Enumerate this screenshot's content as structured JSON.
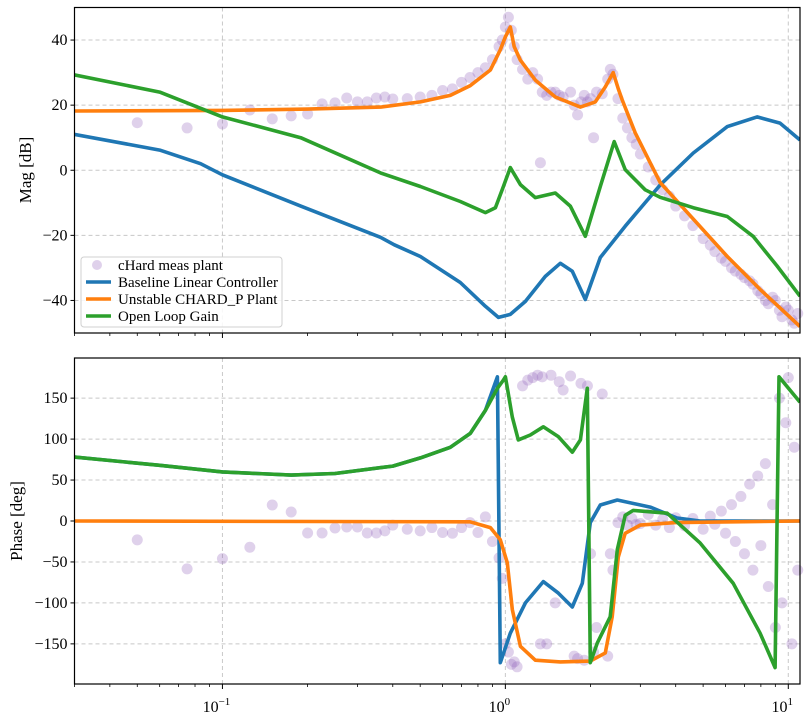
{
  "chart_data": [
    {
      "panel": "magnitude",
      "type": "line",
      "title": "",
      "xlabel": "",
      "ylabel": "Mag [dB]",
      "xscale": "log",
      "xlim": [
        0.03,
        11
      ],
      "ylim": [
        -50,
        50
      ],
      "yticks": [
        -40,
        -20,
        0,
        20,
        40
      ],
      "ytick_labels": [
        "−40",
        "−20",
        "0",
        "20",
        "40"
      ],
      "grid": true,
      "legend": {
        "location": "lower-left",
        "entries": [
          {
            "label": "cHard meas plant",
            "kind": "marker",
            "color": "#9467bd"
          },
          {
            "label": "Baseline Linear Controller",
            "kind": "line",
            "color": "#1f77b4"
          },
          {
            "label": "Unstable CHARD_P Plant",
            "kind": "line",
            "color": "#ff7f0e"
          },
          {
            "label": "Open Loop Gain",
            "kind": "line",
            "color": "#2ca02c"
          }
        ]
      },
      "series": [
        {
          "name": "Baseline Linear Controller",
          "color": "#1f77b4",
          "points": [
            [
              0.03,
              11
            ],
            [
              0.06,
              6.2
            ],
            [
              0.0837,
              2
            ],
            [
              0.1,
              -1.4
            ],
            [
              0.189,
              -11
            ],
            [
              0.362,
              -20.6
            ],
            [
              0.405,
              -22.9
            ],
            [
              0.501,
              -26.5
            ],
            [
              0.693,
              -34.5
            ],
            [
              0.85,
              -41.8
            ],
            [
              0.945,
              -45.2
            ],
            [
              1.041,
              -44.3
            ],
            [
              1.177,
              -40.3
            ],
            [
              1.384,
              -32.6
            ],
            [
              1.564,
              -28.6
            ],
            [
              1.724,
              -31
            ],
            [
              1.917,
              -39.7
            ],
            [
              2.166,
              -26.8
            ],
            [
              2.652,
              -17.2
            ],
            [
              3.526,
              -4.5
            ],
            [
              4.615,
              5.3
            ],
            [
              6.085,
              13.4
            ],
            [
              7.756,
              16.4
            ],
            [
              9.35,
              14.5
            ],
            [
              11,
              9.3
            ]
          ]
        },
        {
          "name": "Unstable CHARD_P Plant",
          "color": "#ff7f0e",
          "points": [
            [
              0.03,
              18.2
            ],
            [
              0.1,
              18.4
            ],
            [
              0.2,
              18.8
            ],
            [
              0.362,
              19.4
            ],
            [
              0.501,
              21
            ],
            [
              0.639,
              23
            ],
            [
              0.752,
              26
            ],
            [
              0.885,
              30.8
            ],
            [
              0.96,
              37
            ],
            [
              1.0,
              41
            ],
            [
              1.041,
              44
            ],
            [
              1.075,
              38
            ],
            [
              1.13,
              33.8
            ],
            [
              1.276,
              27.7
            ],
            [
              1.502,
              22.5
            ],
            [
              1.841,
              19.4
            ],
            [
              2.079,
              21
            ],
            [
              2.256,
              25.6
            ],
            [
              2.405,
              30
            ],
            [
              2.507,
              25
            ],
            [
              2.589,
              21.6
            ],
            [
              2.877,
              11.5
            ],
            [
              3.25,
              2.3
            ],
            [
              3.526,
              -3.8
            ],
            [
              4.615,
              -15
            ],
            [
              6.085,
              -26.5
            ],
            [
              7.95,
              -36.6
            ],
            [
              11,
              -48
            ]
          ]
        },
        {
          "name": "Open Loop Gain",
          "color": "#2ca02c",
          "points": [
            [
              0.03,
              29.3
            ],
            [
              0.06,
              24
            ],
            [
              0.1,
              16.4
            ],
            [
              0.189,
              10
            ],
            [
              0.362,
              -0.8
            ],
            [
              0.501,
              -5
            ],
            [
              0.693,
              -9.6
            ],
            [
              0.85,
              -13
            ],
            [
              0.922,
              -11.5
            ],
            [
              0.984,
              -5
            ],
            [
              1.041,
              0.8
            ],
            [
              1.13,
              -4.4
            ],
            [
              1.276,
              -8.4
            ],
            [
              1.502,
              -7
            ],
            [
              1.697,
              -11
            ],
            [
              1.917,
              -20.3
            ],
            [
              2.166,
              -5
            ],
            [
              2.425,
              8.8
            ],
            [
              2.652,
              0.2
            ],
            [
              3.121,
              -6
            ],
            [
              3.526,
              -8.3
            ],
            [
              4.615,
              -11.5
            ],
            [
              6.085,
              -14.2
            ],
            [
              7.508,
              -20.3
            ],
            [
              9.12,
              -29.4
            ],
            [
              11,
              -38.7
            ]
          ]
        }
      ]
    },
    {
      "panel": "phase",
      "type": "line",
      "title": "",
      "xlabel": "",
      "ylabel": "Phase [deg]",
      "xscale": "log",
      "xlim": [
        0.03,
        11
      ],
      "ylim": [
        -199,
        199
      ],
      "yticks": [
        -150,
        -100,
        -50,
        0,
        50,
        100,
        150
      ],
      "ytick_labels": [
        "−150",
        "−100",
        "−50",
        "0",
        "50",
        "100",
        "150"
      ],
      "grid": true,
      "series": [
        {
          "name": "Baseline Linear Controller",
          "color": "#1f77b4",
          "points": [
            [
              0.03,
              78
            ],
            [
              0.06,
              68
            ],
            [
              0.1,
              60
            ],
            [
              0.175,
              56
            ],
            [
              0.25,
              58
            ],
            [
              0.4,
              67
            ],
            [
              0.501,
              77
            ],
            [
              0.639,
              90
            ],
            [
              0.752,
              107
            ],
            [
              0.85,
              135
            ],
            [
              0.937,
              176
            ],
            [
              0.96,
              -173
            ],
            [
              1.041,
              -137
            ],
            [
              1.177,
              -100
            ],
            [
              1.362,
              -74
            ],
            [
              1.539,
              -88
            ],
            [
              1.724,
              -105
            ],
            [
              1.87,
              -76
            ],
            [
              1.996,
              -2
            ],
            [
              2.166,
              19.5
            ],
            [
              2.486,
              25.6
            ],
            [
              3.25,
              17
            ],
            [
              4.047,
              3.7
            ],
            [
              4.884,
              0
            ],
            [
              11,
              0
            ]
          ]
        },
        {
          "name": "Unstable CHARD_P Plant",
          "color": "#ff7f0e",
          "points": [
            [
              0.03,
              0
            ],
            [
              0.75,
              -1
            ],
            [
              0.885,
              -8
            ],
            [
              0.96,
              -23
            ],
            [
              1.016,
              -51
            ],
            [
              1.058,
              -108
            ],
            [
              1.13,
              -153
            ],
            [
              1.276,
              -170
            ],
            [
              1.564,
              -172
            ],
            [
              1.996,
              -171
            ],
            [
              2.256,
              -161
            ],
            [
              2.386,
              -117
            ],
            [
              2.507,
              -44
            ],
            [
              2.652,
              -15
            ],
            [
              2.996,
              -5
            ],
            [
              4,
              -2
            ],
            [
              11,
              0
            ]
          ]
        },
        {
          "name": "Open Loop Gain",
          "color": "#2ca02c",
          "points": [
            [
              0.03,
              78
            ],
            [
              0.06,
              68
            ],
            [
              0.1,
              60
            ],
            [
              0.175,
              56
            ],
            [
              0.25,
              58
            ],
            [
              0.4,
              67
            ],
            [
              0.501,
              77
            ],
            [
              0.639,
              90
            ],
            [
              0.752,
              107
            ],
            [
              0.85,
              135
            ],
            [
              0.937,
              162
            ],
            [
              0.984,
              172
            ],
            [
              1.0,
              176
            ],
            [
              1.058,
              127
            ],
            [
              1.111,
              99
            ],
            [
              1.225,
              105
            ],
            [
              1.362,
              115
            ],
            [
              1.539,
              103
            ],
            [
              1.724,
              84
            ],
            [
              1.841,
              99
            ],
            [
              1.948,
              162
            ],
            [
              1.996,
              -173
            ],
            [
              2.113,
              -149
            ],
            [
              2.348,
              -117
            ],
            [
              2.486,
              -35
            ],
            [
              2.652,
              7
            ],
            [
              2.831,
              13
            ],
            [
              3.734,
              9.5
            ],
            [
              4.884,
              -27
            ],
            [
              6.387,
              -76
            ],
            [
              7.95,
              -137
            ],
            [
              8.98,
              -179
            ],
            [
              9.27,
              176
            ],
            [
              11,
              145
            ]
          ]
        }
      ]
    }
  ],
  "scatter": {
    "name": "cHard meas plant",
    "color": "#9467bd",
    "points_freq_mag_phase": [
      [
        0.05,
        14.6,
        -23
      ],
      [
        0.075,
        13,
        -58.5
      ],
      [
        0.1,
        14.2,
        -46
      ],
      [
        0.125,
        18.5,
        -32
      ],
      [
        0.15,
        15.8,
        19.5
      ],
      [
        0.175,
        16.7,
        11
      ],
      [
        0.2,
        17.3,
        -14.6
      ],
      [
        0.225,
        20.4,
        -14.6
      ],
      [
        0.25,
        20.7,
        -8.5
      ],
      [
        0.275,
        22.2,
        -7.3
      ],
      [
        0.3,
        21,
        -7.3
      ],
      [
        0.325,
        21,
        -14.6
      ],
      [
        0.35,
        22.2,
        -14.6
      ],
      [
        0.375,
        22.5,
        -12
      ],
      [
        0.4,
        21.9,
        -5
      ],
      [
        0.45,
        22,
        -10
      ],
      [
        0.5,
        22.5,
        -12
      ],
      [
        0.55,
        23,
        -8
      ],
      [
        0.6,
        24.5,
        -14
      ],
      [
        0.65,
        25,
        -15
      ],
      [
        0.7,
        27,
        -8
      ],
      [
        0.75,
        28.5,
        -2
      ],
      [
        0.8,
        30,
        -14
      ],
      [
        0.85,
        31.5,
        5
      ],
      [
        0.9,
        34,
        -25
      ],
      [
        0.95,
        38,
        -45
      ],
      [
        0.975,
        40,
        -70
      ],
      [
        1.0,
        44,
        -150
      ],
      [
        1.025,
        47,
        -160
      ],
      [
        1.05,
        43,
        -175
      ],
      [
        1.075,
        38,
        -172
      ],
      [
        1.1,
        34,
        -178
      ],
      [
        1.15,
        31,
        165
      ],
      [
        1.2,
        28,
        172
      ],
      [
        1.25,
        30,
        175
      ],
      [
        1.3,
        28,
        178
      ],
      [
        1.33,
        2.3,
        -150
      ],
      [
        1.35,
        24,
        176
      ],
      [
        1.4,
        23,
        -150
      ],
      [
        1.45,
        24,
        178
      ],
      [
        1.5,
        24,
        -100
      ],
      [
        1.55,
        23,
        170
      ],
      [
        1.6,
        22.5,
        160
      ],
      [
        1.7,
        24,
        177
      ],
      [
        1.75,
        20,
        -165
      ],
      [
        1.8,
        17,
        -168
      ],
      [
        1.85,
        21,
        168
      ],
      [
        1.9,
        23,
        -170
      ],
      [
        1.95,
        21,
        165
      ],
      [
        2.0,
        22,
        -40
      ],
      [
        2.05,
        10,
        -160
      ],
      [
        2.1,
        24,
        -130
      ],
      [
        2.2,
        23.5,
        155
      ],
      [
        2.3,
        28,
        -165
      ],
      [
        2.35,
        31,
        -40
      ],
      [
        2.4,
        29.5,
        -60
      ],
      [
        2.5,
        22,
        -2
      ],
      [
        2.6,
        16,
        5
      ],
      [
        2.7,
        13,
        -5
      ],
      [
        2.8,
        10,
        3
      ],
      [
        2.9,
        8,
        -4
      ],
      [
        3.0,
        5,
        -3
      ],
      [
        3.2,
        1,
        8
      ],
      [
        3.4,
        -3,
        -5
      ],
      [
        3.6,
        -6,
        2
      ],
      [
        3.8,
        -8,
        -8
      ],
      [
        4.0,
        -11,
        4
      ],
      [
        4.3,
        -14,
        -6
      ],
      [
        4.6,
        -17,
        3
      ],
      [
        5.0,
        -21,
        -10
      ],
      [
        5.3,
        -23,
        6
      ],
      [
        5.5,
        -25,
        -4
      ],
      [
        5.8,
        -27,
        12
      ],
      [
        6.0,
        -28,
        -15
      ],
      [
        6.3,
        -30,
        20
      ],
      [
        6.5,
        -31,
        -25
      ],
      [
        6.8,
        -32,
        30
      ],
      [
        7.0,
        -33,
        -40
      ],
      [
        7.3,
        -34,
        45
      ],
      [
        7.5,
        -35,
        -60
      ],
      [
        7.8,
        -37,
        55
      ],
      [
        8.0,
        -38,
        -30
      ],
      [
        8.3,
        -40,
        70
      ],
      [
        8.5,
        -41,
        -80
      ],
      [
        8.8,
        -39,
        20
      ],
      [
        9.0,
        -40,
        -130
      ],
      [
        9.3,
        -43,
        150
      ],
      [
        9.5,
        -45,
        -100
      ],
      [
        9.8,
        -42,
        120
      ],
      [
        10,
        -43,
        175
      ],
      [
        10.3,
        -46,
        -150
      ],
      [
        10.5,
        -47,
        90
      ],
      [
        10.8,
        -44,
        -60
      ]
    ]
  },
  "xticks": [
    0.1,
    1,
    10
  ],
  "xtick_labels": [
    {
      "base": "10",
      "exp": "−1"
    },
    {
      "base": "10",
      "exp": "0"
    },
    {
      "base": "10",
      "exp": "1"
    }
  ]
}
